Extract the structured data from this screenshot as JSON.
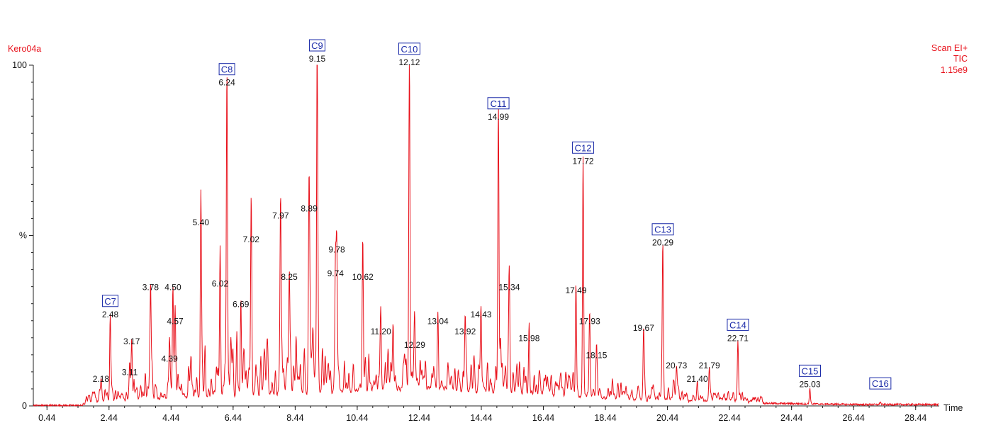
{
  "header": {
    "sample": "Kero04a",
    "scan": "Scan EI+",
    "mode": "TIC",
    "intensity": "1.15e9"
  },
  "chart_data": {
    "type": "line",
    "title": "",
    "xlabel": "Time",
    "ylabel": "%",
    "xlim": [
      0.0,
      29.2
    ],
    "ylim": [
      0,
      100
    ],
    "x_ticks": [
      "0.44",
      "2.44",
      "4.44",
      "6.44",
      "8.44",
      "10.44",
      "12.44",
      "14.44",
      "16.44",
      "18.44",
      "20.44",
      "22.44",
      "24.44",
      "26.44",
      "28.44"
    ],
    "y_ticks": [
      "0",
      "%",
      "100"
    ],
    "y_tick_values": [
      0,
      50,
      100
    ],
    "color": "#e8101a",
    "peaks": [
      {
        "x": 2.18,
        "y": 6
      },
      {
        "x": 2.48,
        "y": 25
      },
      {
        "x": 3.11,
        "y": 8
      },
      {
        "x": 3.17,
        "y": 17
      },
      {
        "x": 3.78,
        "y": 33
      },
      {
        "x": 4.39,
        "y": 12
      },
      {
        "x": 4.5,
        "y": 33
      },
      {
        "x": 4.57,
        "y": 23
      },
      {
        "x": 5.4,
        "y": 52
      },
      {
        "x": 6.02,
        "y": 34
      },
      {
        "x": 6.24,
        "y": 93
      },
      {
        "x": 6.69,
        "y": 28
      },
      {
        "x": 7.02,
        "y": 47
      },
      {
        "x": 7.97,
        "y": 54
      },
      {
        "x": 8.25,
        "y": 36
      },
      {
        "x": 8.89,
        "y": 56
      },
      {
        "x": 9.15,
        "y": 100
      },
      {
        "x": 9.74,
        "y": 37
      },
      {
        "x": 9.78,
        "y": 44
      },
      {
        "x": 10.62,
        "y": 36
      },
      {
        "x": 11.2,
        "y": 20
      },
      {
        "x": 12.12,
        "y": 99
      },
      {
        "x": 12.29,
        "y": 16
      },
      {
        "x": 13.04,
        "y": 23
      },
      {
        "x": 13.92,
        "y": 20
      },
      {
        "x": 14.43,
        "y": 25
      },
      {
        "x": 14.99,
        "y": 83
      },
      {
        "x": 15.34,
        "y": 33
      },
      {
        "x": 15.98,
        "y": 18
      },
      {
        "x": 17.49,
        "y": 32
      },
      {
        "x": 17.72,
        "y": 70
      },
      {
        "x": 17.93,
        "y": 23
      },
      {
        "x": 18.15,
        "y": 13
      },
      {
        "x": 19.67,
        "y": 21
      },
      {
        "x": 20.29,
        "y": 46
      },
      {
        "x": 20.73,
        "y": 10
      },
      {
        "x": 21.4,
        "y": 6
      },
      {
        "x": 21.79,
        "y": 10
      },
      {
        "x": 22.71,
        "y": 18
      },
      {
        "x": 25.03,
        "y": 4.5
      },
      {
        "x": 27.3,
        "y": 0.8
      }
    ],
    "peak_labels": [
      {
        "text": "2.18",
        "x": 2.18,
        "y": 6
      },
      {
        "text": "2.48",
        "x": 2.48,
        "y": 25
      },
      {
        "text": "3.11",
        "x": 3.11,
        "y": 8
      },
      {
        "text": "3.17",
        "x": 3.17,
        "y": 17
      },
      {
        "text": "3.78",
        "x": 3.78,
        "y": 33
      },
      {
        "text": "4.39",
        "x": 4.39,
        "y": 12
      },
      {
        "text": "4.50",
        "x": 4.5,
        "y": 33
      },
      {
        "text": "4.57",
        "x": 4.57,
        "y": 23
      },
      {
        "text": "5.40",
        "x": 5.4,
        "y": 52
      },
      {
        "text": "6.02",
        "x": 6.02,
        "y": 34
      },
      {
        "text": "6.24",
        "x": 6.24,
        "y": 93
      },
      {
        "text": "6.69",
        "x": 6.69,
        "y": 28
      },
      {
        "text": "7.02",
        "x": 7.02,
        "y": 47
      },
      {
        "text": "7.97",
        "x": 7.97,
        "y": 54
      },
      {
        "text": "8.25",
        "x": 8.25,
        "y": 36
      },
      {
        "text": "8.89",
        "x": 8.89,
        "y": 56
      },
      {
        "text": "9.15",
        "x": 9.15,
        "y": 100
      },
      {
        "text": "9.74",
        "x": 9.74,
        "y": 37
      },
      {
        "text": "9.78",
        "x": 9.78,
        "y": 44
      },
      {
        "text": "10.62",
        "x": 10.62,
        "y": 36
      },
      {
        "text": "11.20",
        "x": 11.2,
        "y": 20
      },
      {
        "text": "12.12",
        "x": 12.12,
        "y": 99
      },
      {
        "text": "12.29",
        "x": 12.29,
        "y": 16
      },
      {
        "text": "13.04",
        "x": 13.04,
        "y": 23
      },
      {
        "text": "13.92",
        "x": 13.92,
        "y": 20
      },
      {
        "text": "14.43",
        "x": 14.43,
        "y": 25
      },
      {
        "text": "14.99",
        "x": 14.99,
        "y": 83
      },
      {
        "text": "15.34",
        "x": 15.34,
        "y": 33
      },
      {
        "text": "15.98",
        "x": 15.98,
        "y": 18
      },
      {
        "text": "17.49",
        "x": 17.49,
        "y": 32
      },
      {
        "text": "17.72",
        "x": 17.72,
        "y": 70
      },
      {
        "text": "17.93",
        "x": 17.93,
        "y": 23
      },
      {
        "text": "18.15",
        "x": 18.15,
        "y": 13
      },
      {
        "text": "19.67",
        "x": 19.67,
        "y": 21
      },
      {
        "text": "20.29",
        "x": 20.29,
        "y": 46
      },
      {
        "text": "20.73",
        "x": 20.73,
        "y": 10
      },
      {
        "text": "21.40",
        "x": 21.4,
        "y": 6
      },
      {
        "text": "21.79",
        "x": 21.79,
        "y": 10
      },
      {
        "text": "22.71",
        "x": 22.71,
        "y": 18
      },
      {
        "text": "25.03",
        "x": 25.03,
        "y": 4.5
      }
    ],
    "carbon_labels": [
      {
        "text": "C7",
        "x": 2.48,
        "y": 25
      },
      {
        "text": "C8",
        "x": 6.24,
        "y": 93
      },
      {
        "text": "C9",
        "x": 9.15,
        "y": 100
      },
      {
        "text": "C10",
        "x": 12.12,
        "y": 99
      },
      {
        "text": "C11",
        "x": 14.99,
        "y": 83
      },
      {
        "text": "C12",
        "x": 17.72,
        "y": 70
      },
      {
        "text": "C13",
        "x": 20.29,
        "y": 46
      },
      {
        "text": "C14",
        "x": 22.71,
        "y": 18
      },
      {
        "text": "C15",
        "x": 25.03,
        "y": 4.5
      },
      {
        "text": "C16",
        "x": 27.3,
        "y": 0.8
      }
    ]
  }
}
